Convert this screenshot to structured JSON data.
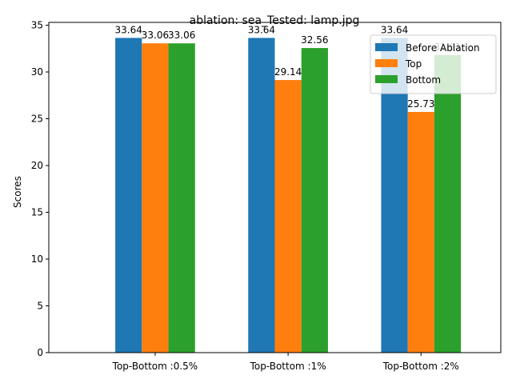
{
  "chart_data": {
    "type": "bar",
    "title": "ablation: sea_Tested: lamp.jpg",
    "xlabel": "",
    "ylabel": "Scores",
    "categories": [
      "Top-Bottom :0.5%",
      "Top-Bottom :1%",
      "Top-Bottom :2%"
    ],
    "series": [
      {
        "name": "Before Ablation",
        "color": "#1f77b4",
        "values": [
          33.64,
          33.64,
          33.64
        ]
      },
      {
        "name": "Top",
        "color": "#ff7f0e",
        "values": [
          33.06,
          29.14,
          25.73
        ]
      },
      {
        "name": "Bottom",
        "color": "#2ca02c",
        "values": [
          33.06,
          32.56,
          31.81
        ]
      }
    ],
    "ylim": [
      0,
      35.3
    ],
    "yticks": [
      0,
      5,
      10,
      15,
      20,
      25,
      30,
      35
    ],
    "grid": false,
    "legend": "top-right"
  }
}
